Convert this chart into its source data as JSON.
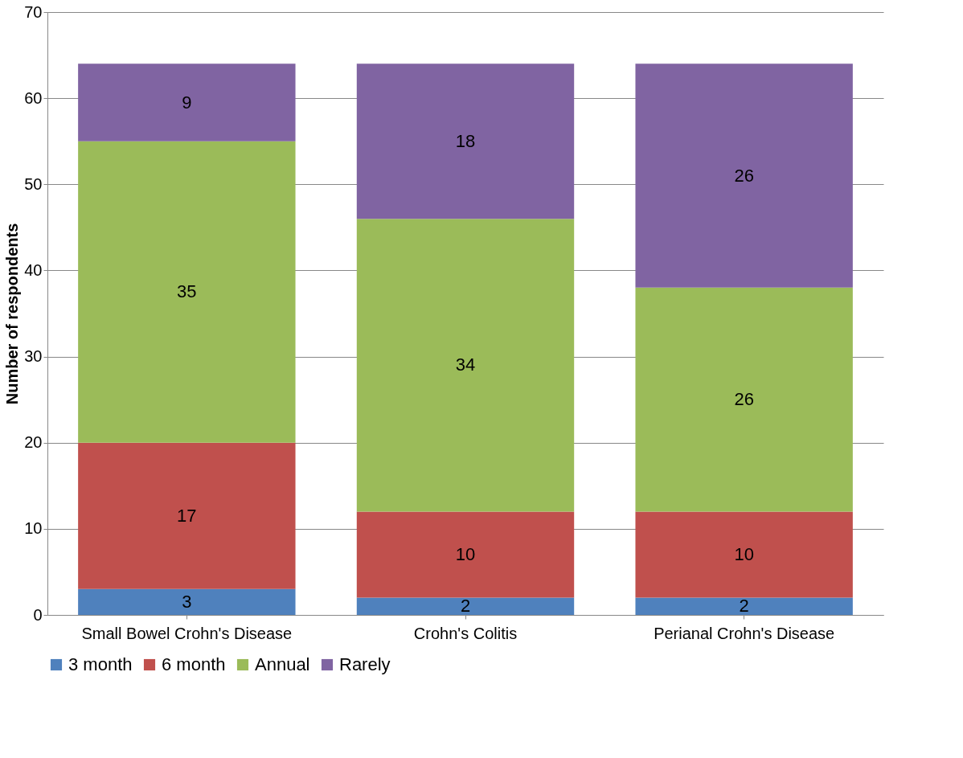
{
  "chart_data": {
    "type": "bar",
    "stacked": true,
    "ylabel": "Number of respondents",
    "categories": [
      "Small Bowel Crohn's Disease",
      "Crohn's Colitis",
      "Perianal Crohn's Disease"
    ],
    "series": [
      {
        "name": "3 month",
        "color": "#4f81bd",
        "values": [
          3,
          2,
          2
        ]
      },
      {
        "name": "6 month",
        "color": "#c0504d",
        "values": [
          17,
          10,
          10
        ]
      },
      {
        "name": "Annual",
        "color": "#9bbb59",
        "values": [
          35,
          34,
          26
        ]
      },
      {
        "name": "Rarely",
        "color": "#8064a2",
        "values": [
          9,
          18,
          26
        ]
      }
    ],
    "ylim": [
      0,
      70
    ],
    "yticks": [
      0,
      10,
      20,
      30,
      40,
      50,
      60,
      70
    ],
    "grid": "y",
    "legend": "bottom",
    "data_labels": true
  }
}
